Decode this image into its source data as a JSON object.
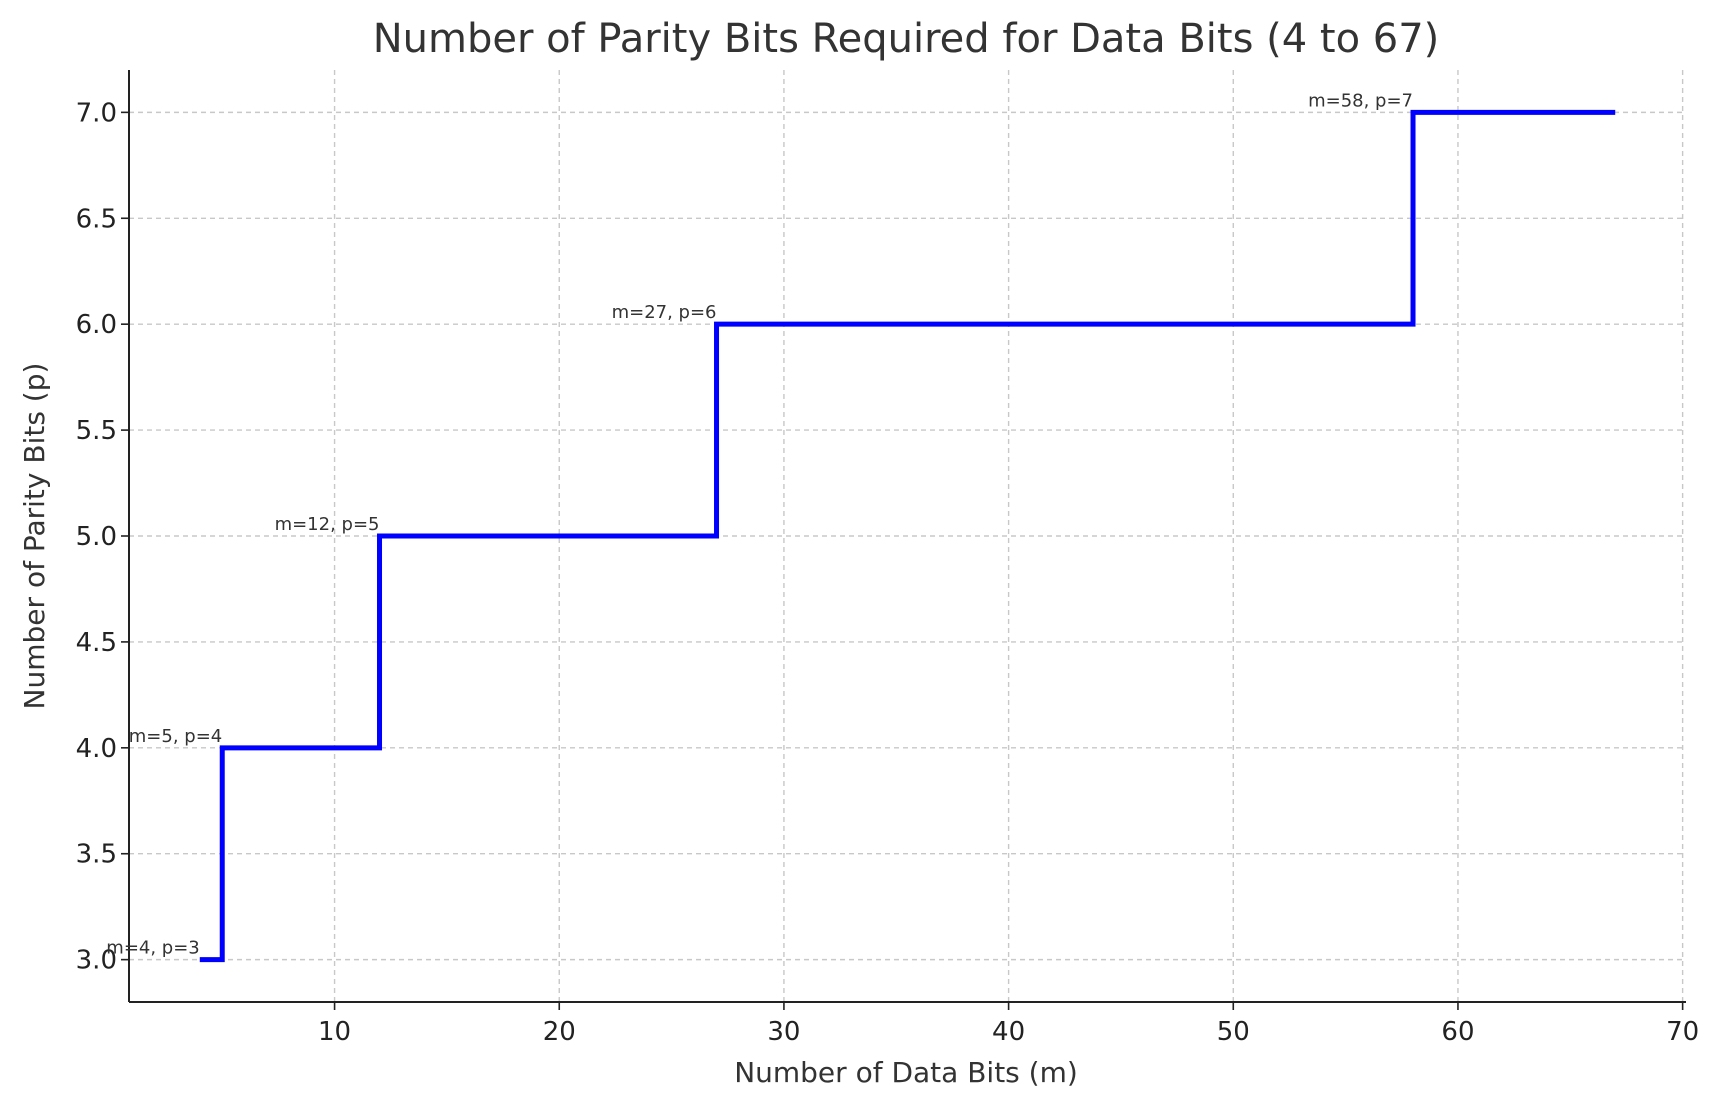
{
  "chart_data": {
    "type": "line",
    "step": "post",
    "title": "Number of Parity Bits Required for Data Bits (4 to 67)",
    "xlabel": "Number of Data Bits (m)",
    "ylabel": "Number of Parity Bits (p)",
    "xlim": [
      0.85,
      70.15
    ],
    "ylim": [
      2.8,
      7.2
    ],
    "xticks": [
      10,
      20,
      30,
      40,
      50,
      60,
      70
    ],
    "xtick_labels": [
      "10",
      "20",
      "30",
      "40",
      "50",
      "60",
      "70"
    ],
    "yticks": [
      3.0,
      3.5,
      4.0,
      4.5,
      5.0,
      5.5,
      6.0,
      6.5,
      7.0
    ],
    "ytick_labels": [
      "3.0",
      "3.5",
      "4.0",
      "4.5",
      "5.0",
      "5.5",
      "6.0",
      "6.5",
      "7.0"
    ],
    "grid": true,
    "series": [
      {
        "color": "#0000ff",
        "x": [
          4,
          5,
          12,
          27,
          58,
          67
        ],
        "y": [
          3,
          4,
          5,
          6,
          7,
          7
        ]
      }
    ],
    "annotations": [
      {
        "text": "m=4, p=3",
        "x": 4,
        "y": 3
      },
      {
        "text": "m=5, p=4",
        "x": 5,
        "y": 4
      },
      {
        "text": "m=12, p=5",
        "x": 12,
        "y": 5
      },
      {
        "text": "m=27, p=6",
        "x": 27,
        "y": 6
      },
      {
        "text": "m=58, p=7",
        "x": 58,
        "y": 7
      }
    ]
  }
}
